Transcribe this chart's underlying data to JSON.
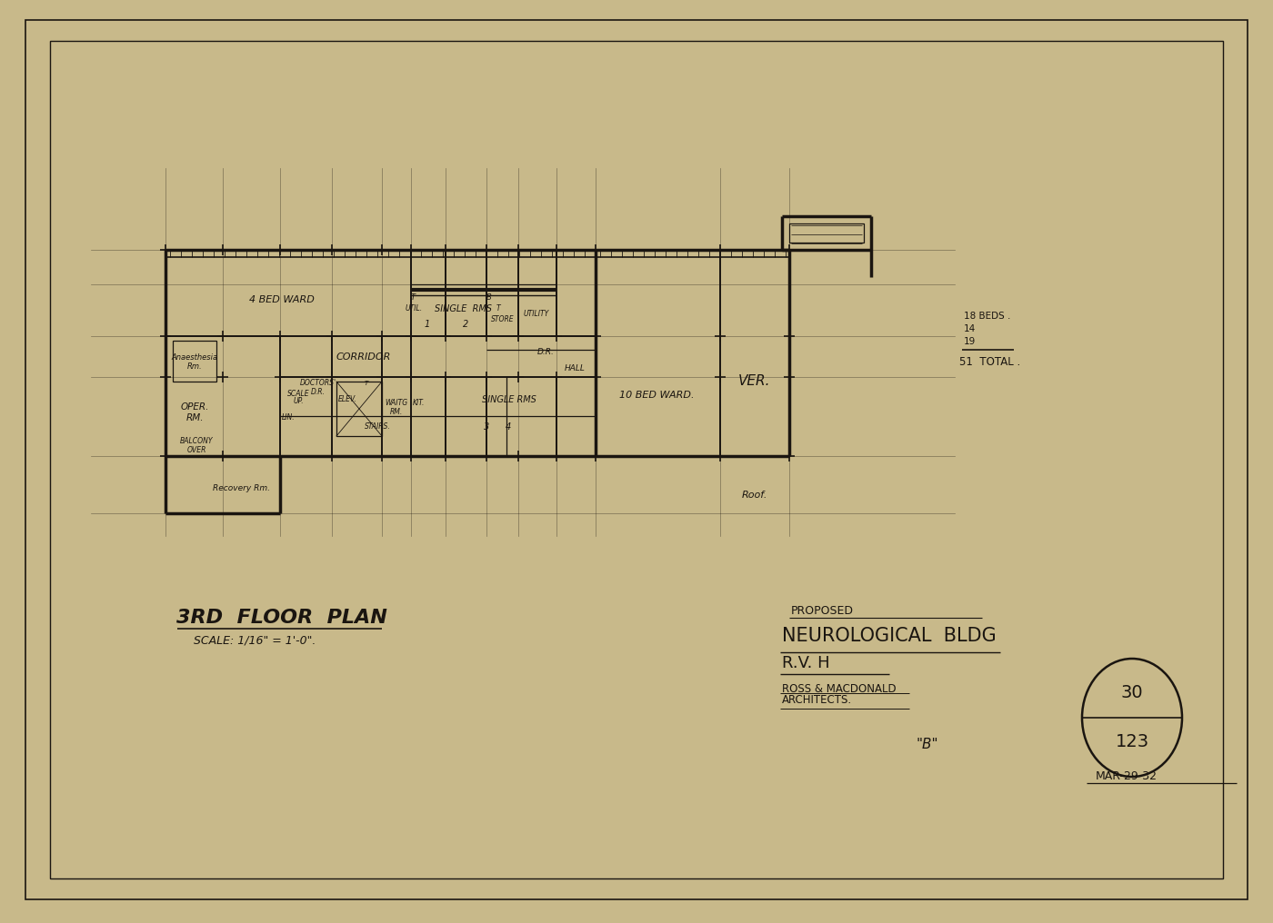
{
  "bg_color": "#c8b98a",
  "line_color": "#1a1510",
  "title_text": "3RD  FLOOR  PLAN",
  "subtitle_text": "SCALE: 1/16\" = 1'-0\".",
  "proposed": "PROPOSED",
  "bldg_name": "NEUROLOGICAL  BLDG",
  "rvh": "R.V. H",
  "arch1": "ROSS & MACDONALD",
  "arch2": "ARCHITECTS.",
  "sheet_top": "30",
  "sheet_bot": "123",
  "date_str": "MAR-29-32",
  "rev": "\"B\"",
  "beds1": "18 BEDS .",
  "beds2": "14",
  "beds3": "19",
  "beds4": "51  TOTAL ."
}
